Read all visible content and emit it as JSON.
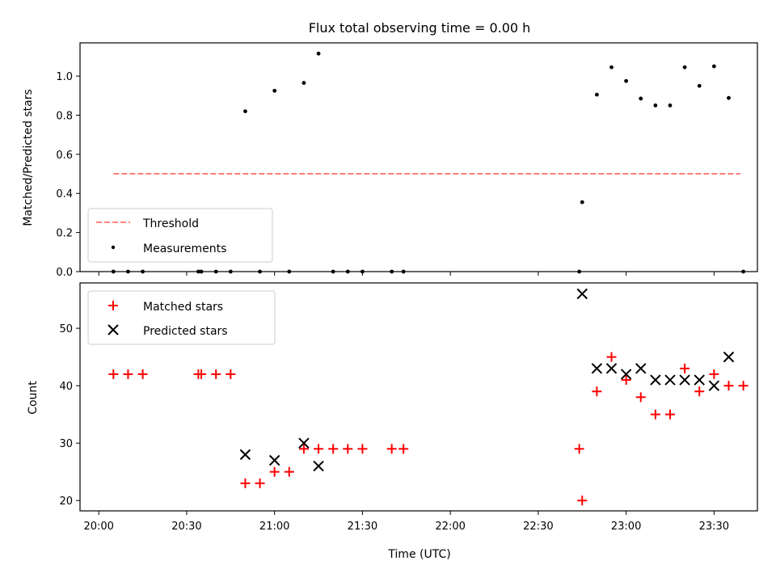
{
  "chart_data": {
    "type": "scatter",
    "title": "Flux total observing time = 0.00 h",
    "xlabel": "Time (UTC)",
    "x_tick_labels": [
      "20:00",
      "20:30",
      "21:00",
      "21:30",
      "22:00",
      "22:30",
      "23:00",
      "23:30"
    ],
    "x_ticks_min": [
      0,
      30,
      60,
      90,
      120,
      150,
      180,
      210
    ],
    "x_range_min": [
      -6.4,
      224.8
    ],
    "top": {
      "ylabel": "Matched/Predicted stars",
      "ylim": [
        0,
        1.17
      ],
      "y_ticks": [
        "0.0",
        "0.2",
        "0.4",
        "0.6",
        "0.8",
        "1.0"
      ],
      "legend_position": "lower-left",
      "threshold": {
        "name": "Threshold",
        "value": 0.5,
        "x_range": [
          5,
          219
        ],
        "color": "#ff7f7f"
      },
      "measurements": {
        "name": "Measurements",
        "color": "#000000",
        "x": [
          5,
          10,
          15,
          34,
          35,
          40,
          45,
          50,
          55,
          60,
          65,
          70,
          75,
          80,
          85,
          90,
          100,
          104,
          164,
          165,
          170,
          175,
          180,
          185,
          190,
          195,
          200,
          205,
          210,
          215,
          220
        ],
        "y": [
          0,
          0,
          0,
          0,
          0,
          0,
          0,
          0.82,
          0,
          0.925,
          0,
          0.965,
          1.115,
          0,
          0,
          0,
          0,
          0,
          0,
          0.355,
          0.905,
          1.045,
          0.975,
          0.885,
          0.85,
          0.85,
          1.045,
          0.95,
          1.05,
          0.888,
          0
        ]
      }
    },
    "bottom": {
      "ylabel": "Count",
      "ylim": [
        18.2,
        57.9
      ],
      "y_ticks": [
        20,
        30,
        40,
        50
      ],
      "legend_position": "top-left",
      "series": [
        {
          "name": "Matched stars",
          "marker": "plus",
          "color": "#ff0000",
          "x": [
            5,
            10,
            15,
            34,
            35,
            40,
            45,
            50,
            55,
            60,
            65,
            70,
            75,
            80,
            85,
            90,
            100,
            104,
            164,
            165,
            170,
            175,
            180,
            185,
            190,
            195,
            200,
            205,
            210,
            215,
            220
          ],
          "y": [
            42,
            42,
            42,
            42,
            42,
            42,
            42,
            23,
            23,
            25,
            25,
            29,
            29,
            29,
            29,
            29,
            29,
            29,
            29,
            20,
            39,
            45,
            41,
            38,
            35,
            35,
            43,
            39,
            42,
            40,
            40
          ]
        },
        {
          "name": "Predicted stars",
          "marker": "x",
          "color": "#000000",
          "x": [
            50,
            60,
            70,
            75,
            165,
            170,
            175,
            180,
            185,
            190,
            195,
            200,
            205,
            210,
            215
          ],
          "y": [
            28,
            27,
            30,
            26,
            56,
            43,
            43,
            42,
            43,
            41,
            41,
            41,
            41,
            40,
            45
          ]
        }
      ]
    }
  }
}
